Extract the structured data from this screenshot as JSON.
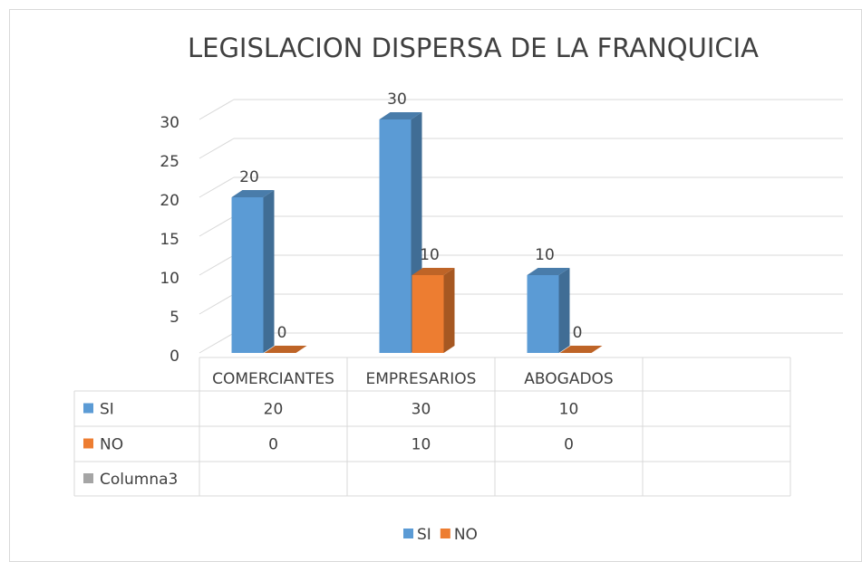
{
  "chart_data": {
    "type": "bar3d",
    "title": "LEGISLACION DISPERSA DE LA FRANQUICIA",
    "categories": [
      "COMERCIANTES",
      "EMPRESARIOS",
      "ABOGADOS",
      null
    ],
    "series": [
      {
        "name": "SI",
        "color": "#5b9bd5",
        "values": [
          20,
          30,
          10,
          null
        ],
        "in_legend": true
      },
      {
        "name": "NO",
        "color": "#ed7d31",
        "values": [
          0,
          10,
          0,
          null
        ],
        "in_legend": true
      },
      {
        "name": "Columna3",
        "color": "#a5a5a5",
        "values": [
          null,
          null,
          null,
          null
        ],
        "in_legend": false
      }
    ],
    "ylim": [
      0,
      30
    ],
    "yticks": [
      0,
      5,
      10,
      15,
      20,
      25,
      30
    ],
    "grid": true,
    "data_table": true,
    "legend": "bottom"
  }
}
